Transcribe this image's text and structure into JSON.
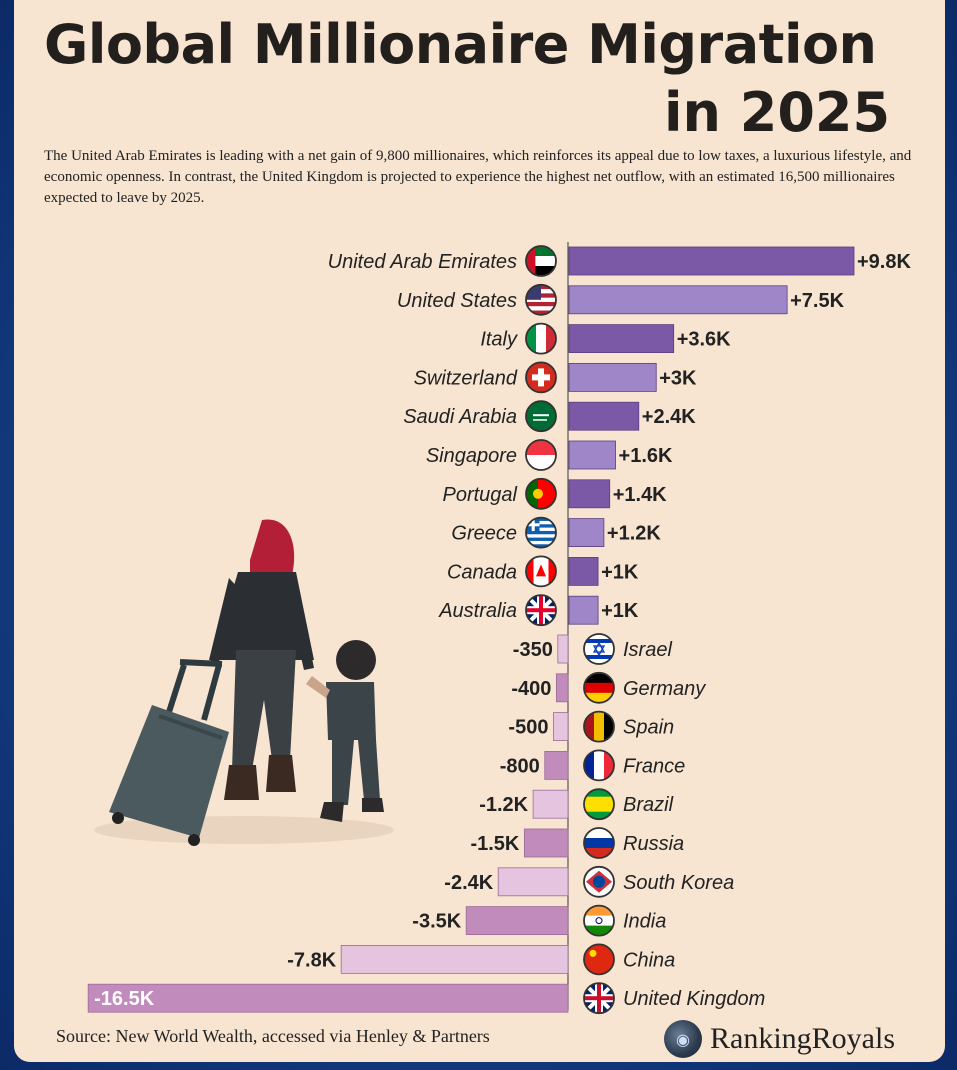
{
  "header": {
    "title_line1": "Global Millionaire Migration",
    "title_line2": "in 2025",
    "description": "The United Arab Emirates is leading with a net gain of 9,800 millionaires, which reinforces its appeal due to low taxes, a luxurious lifestyle, and economic openness. In contrast, the United Kingdom is projected to experience the highest net outflow, with an estimated 16,500 millionaires expected to leave by 2025."
  },
  "footer": {
    "source": "Source: New World Wealth, accessed via Henley & Partners",
    "brand": "RankingRoyals",
    "brand_icon": "globe-icon"
  },
  "colors": {
    "positive_dark": "#7b59a6",
    "positive_light": "#9f86c8",
    "negative_dark": "#c18bbb",
    "negative_light": "#e4c4df",
    "background": "#f7e5d2"
  },
  "chart_data": {
    "type": "bar",
    "orientation": "horizontal",
    "categories": [
      "United Arab Emirates",
      "United States",
      "Italy",
      "Switzerland",
      "Saudi Arabia",
      "Singapore",
      "Portugal",
      "Greece",
      "Canada",
      "Australia",
      "Israel",
      "Germany",
      "Spain",
      "France",
      "Brazil",
      "Russia",
      "South Korea",
      "India",
      "China",
      "United Kingdom"
    ],
    "values": [
      9800,
      7500,
      3600,
      3000,
      2400,
      1600,
      1400,
      1200,
      1000,
      1000,
      -350,
      -400,
      -500,
      -800,
      -1200,
      -1500,
      -2400,
      -3500,
      -7800,
      -16500
    ],
    "labels": [
      "+9.8K",
      "+7.5K",
      "+3.6K",
      "+3K",
      "+2.4K",
      "+1.6K",
      "+1.4K",
      "+1.2K",
      "+1K",
      "+1K",
      "-350",
      "-400",
      "-500",
      "-800",
      "-1.2K",
      "-1.5K",
      "-2.4K",
      "-3.5K",
      "-7.8K",
      "-16.5K"
    ],
    "flags": [
      "flag-uae-icon",
      "flag-usa-icon",
      "flag-italy-icon",
      "flag-switzerland-icon",
      "flag-saudi-arabia-icon",
      "flag-singapore-icon",
      "flag-portugal-icon",
      "flag-greece-icon",
      "flag-canada-icon",
      "flag-australia-icon",
      "flag-israel-icon",
      "flag-germany-icon",
      "flag-spain-icon",
      "flag-france-icon",
      "flag-brazil-icon",
      "flag-russia-icon",
      "flag-south-korea-icon",
      "flag-india-icon",
      "flag-china-icon",
      "flag-uk-icon"
    ],
    "title": "Global Millionaire Migration in 2025",
    "xlabel": "",
    "ylabel": "",
    "xlim": [
      -16500,
      9800
    ],
    "grid": false,
    "legend": "none"
  }
}
